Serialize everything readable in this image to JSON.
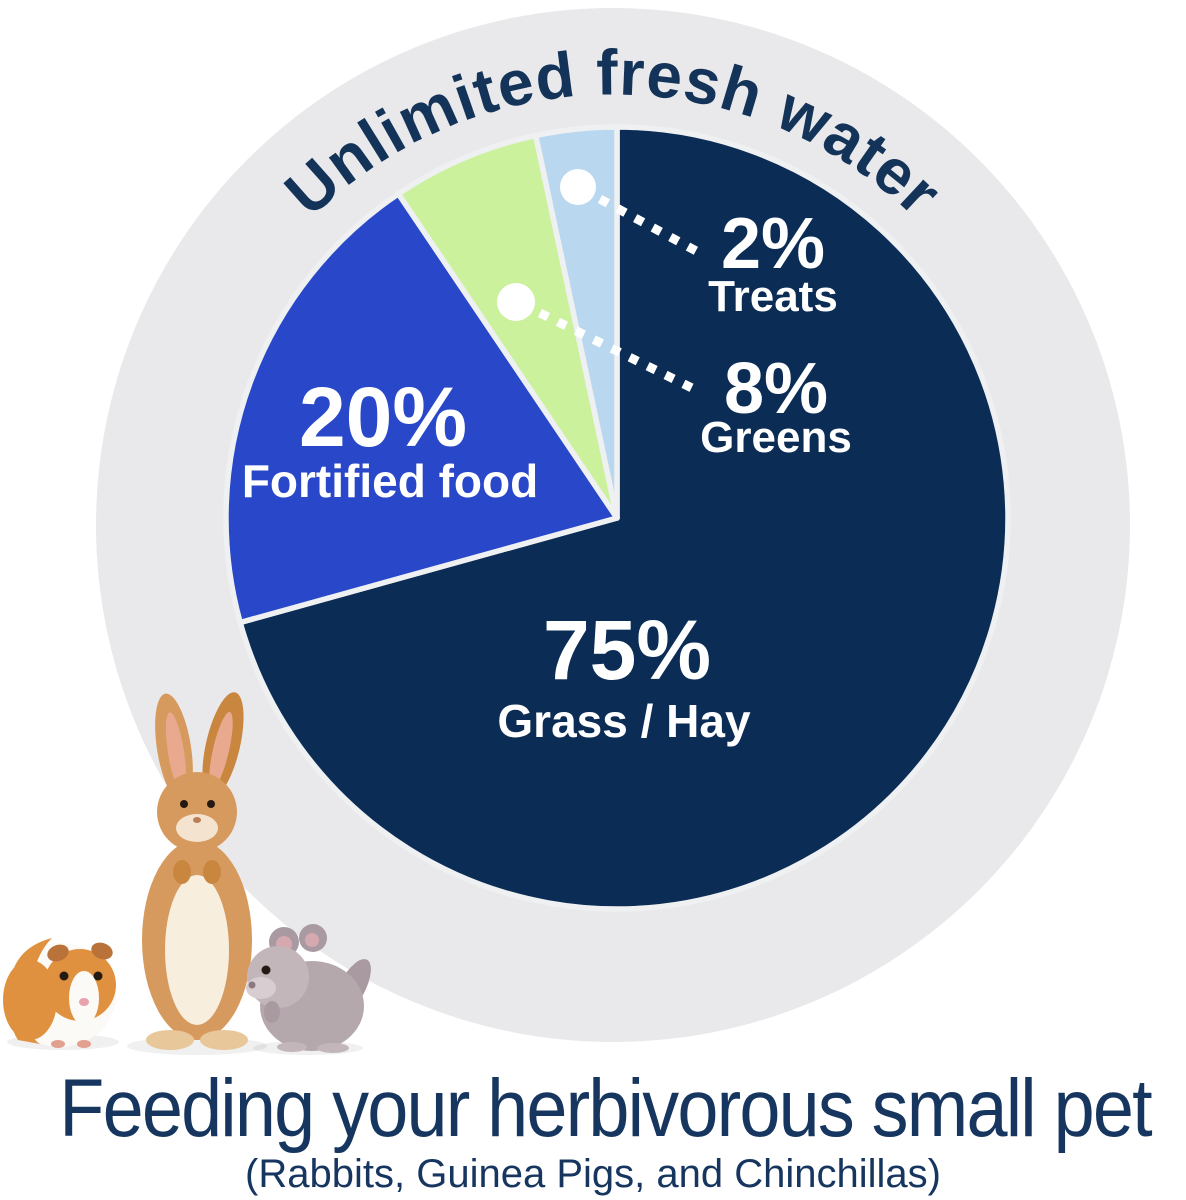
{
  "page": {
    "background_color": "#ffffff"
  },
  "backdrop": {
    "circle_color": "#e9e9eb"
  },
  "header": {
    "curved_title": "Unlimited fresh water",
    "text_color": "#143359"
  },
  "chart_data": {
    "type": "pie",
    "title": "Unlimited fresh water",
    "legend_position": "labels-on-chart",
    "slices": [
      {
        "label": "Grass / Hay",
        "value": 75,
        "pct_label": "75%",
        "color": "#0b2c55",
        "label_color": "#ffffff",
        "start_angle": 0,
        "end_angle": 254.5
      },
      {
        "label": "Fortified food",
        "value": 20,
        "pct_label": "20%",
        "color": "#2847c9",
        "label_color": "#ffffff",
        "start_angle": 254.5,
        "end_angle": 326
      },
      {
        "label": "Greens",
        "value": 8,
        "pct_label": "8%",
        "color": "#cbf19d",
        "label_color": "#ffffff",
        "start_angle": 326,
        "end_angle": 348
      },
      {
        "label": "Treats",
        "value": 2,
        "pct_label": "2%",
        "color": "#b9d8ef",
        "label_color": "#ffffff",
        "start_angle": 348,
        "end_angle": 360
      }
    ],
    "separator_color": "#eef0f2",
    "callout_style": "white dotted leader lines with white dots"
  },
  "footer": {
    "title": "Feeding your herbivorous small pet",
    "subtitle": "(Rabbits, Guinea Pigs, and Chinchillas)",
    "text_color": "#16365f"
  },
  "illustrations": {
    "guinea_pig": "guinea-pig",
    "rabbit": "rabbit",
    "chinchilla": "chinchilla"
  }
}
